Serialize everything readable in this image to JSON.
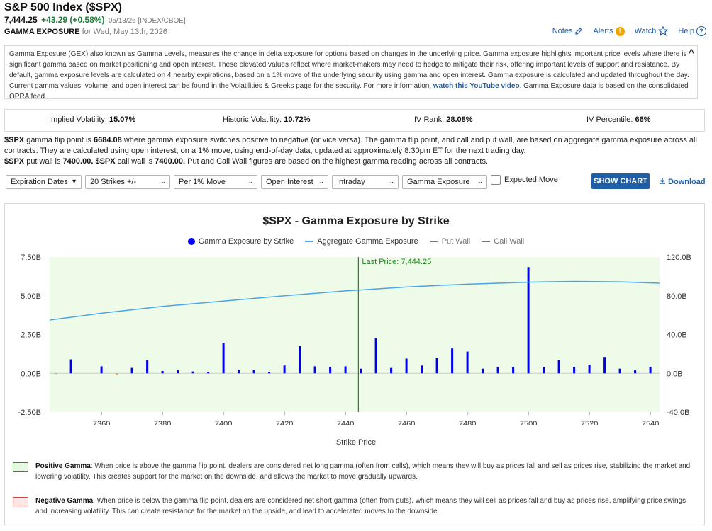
{
  "header": {
    "title": "S&P 500 Index ($SPX)",
    "price": "7,444.25",
    "change": "+43.29 (+0.58%)",
    "quote_meta": "05/13/26 [INDEX/CBOE]",
    "section_label": "GAMMA EXPOSURE",
    "section_date": "for Wed, May 13th, 2026"
  },
  "toplinks": {
    "notes": "Notes",
    "alerts": "Alerts",
    "alerts_badge": "!",
    "watch": "Watch",
    "help": "Help",
    "help_badge": "?"
  },
  "description": {
    "text_before_link": "Gamma Exposure (GEX) also known as Gamma Levels, measures the change in delta exposure for options based on changes in the underlying price. Gamma exposure highlights important price levels where there is significant gamma based on market positioning and open interest. These elevated values reflect where market-makers may need to hedge to mitigate their risk, offering important levels of support and resistance. By default, gamma exposure levels are calculated on 4 nearby expirations, based on a 1% move of the underlying security using gamma and open interest. Gamma exposure is calculated and updated throughout the day. Current gamma values, volume, and open interest can be found in the Volatilities & Greeks page for the security. For more information,",
    "link": "watch this YouTube video",
    "text_after_link": ". Gamma Exposure data is based on the consolidated OPRA feed.",
    "collapse_glyph": "^"
  },
  "stats": [
    {
      "label": "Implied Volatility:",
      "value": "15.07%"
    },
    {
      "label": "Historic Volatility:",
      "value": "10.72%"
    },
    {
      "label": "IV Rank:",
      "value": "28.08%"
    },
    {
      "label": "IV Percentile:",
      "value": "66%"
    }
  ],
  "flip": {
    "sym": "$SPX",
    "t1": " gamma flip point is ",
    "flip_value": "6684.08",
    "t2": " where gamma exposure switches positive to negative (or vice versa). The gamma flip point, and call and put wall, are based on aggregate gamma exposure across all contracts. They are calculated using open interest, on a 1% move, using end-of-day data, updated at approximately 8:30pm ET for the next trading day.",
    "t3": " put wall is ",
    "put_wall": "7400.00",
    "t4": " call wall is ",
    "call_wall": "7400.00",
    "t5": " Put and Call Wall figures are based on the highest gamma reading across all contracts."
  },
  "controls": {
    "expiration": "Expiration Dates",
    "strikes": "20 Strikes +/-",
    "move": "Per 1% Move",
    "interest": "Open Interest",
    "period": "Intraday",
    "metric": "Gamma Exposure",
    "expected_move": "Expected Move",
    "show_chart": "SHOW CHART",
    "download": "Download"
  },
  "chart_data": {
    "type": "bar",
    "title": "$SPX - Gamma Exposure by Strike",
    "xlabel": "Strike Price",
    "legend": [
      "Gamma Exposure by Strike",
      "Aggregate Gamma Exposure",
      "Put Wall",
      "Call Wall"
    ],
    "last_price_label": "Last Price: 7,444.25",
    "last_price": 7444.25,
    "xlim": [
      7343,
      7543
    ],
    "ylim": [
      -2.5,
      7.5
    ],
    "ylim_right": [
      -40,
      120
    ],
    "xticks": [
      7360,
      7380,
      7400,
      7420,
      7440,
      7460,
      7480,
      7500,
      7520,
      7540
    ],
    "yticks": [
      -2.5,
      0,
      2.5,
      5.0,
      7.5
    ],
    "ytick_labels": [
      "-2.50B",
      "0.00B",
      "2.50B",
      "5.00B",
      "7.50B"
    ],
    "yticks_right": [
      -40,
      0,
      40,
      80,
      120
    ],
    "ytick_right_labels": [
      "-40.0B",
      "0.0B",
      "40.0B",
      "80.0B",
      "120.0B"
    ],
    "strikes": [
      7345,
      7350,
      7360,
      7365,
      7370,
      7375,
      7380,
      7385,
      7390,
      7395,
      7400,
      7405,
      7410,
      7415,
      7420,
      7425,
      7430,
      7435,
      7440,
      7445,
      7450,
      7455,
      7460,
      7465,
      7470,
      7475,
      7480,
      7485,
      7490,
      7495,
      7500,
      7505,
      7510,
      7515,
      7520,
      7525,
      7530,
      7535,
      7540
    ],
    "values": [
      -0.05,
      0.9,
      0.45,
      -0.1,
      0.35,
      0.85,
      0.15,
      0.2,
      0.12,
      0.08,
      1.95,
      0.2,
      0.22,
      0.1,
      0.5,
      1.75,
      0.45,
      0.4,
      0.45,
      0.3,
      2.25,
      0.35,
      0.95,
      0.5,
      1.0,
      1.6,
      1.4,
      0.3,
      0.4,
      0.4,
      6.85,
      0.4,
      0.85,
      0.4,
      0.55,
      1.05,
      0.3,
      0.2,
      0.4
    ],
    "aggregate_strikes": [
      7343,
      7360,
      7380,
      7400,
      7420,
      7440,
      7460,
      7480,
      7500,
      7515,
      7530,
      7543
    ],
    "aggregate_values": [
      55,
      62,
      69,
      74.5,
      80,
      85,
      89,
      92,
      94,
      94.8,
      94.3,
      93
    ],
    "colors": {
      "positive": "#0000ee",
      "negative": "#f0a040",
      "aggregate": "#4aa3e8",
      "last_price": "#1a8a1a",
      "plot_bg": "#effbe9"
    }
  },
  "notes": {
    "positive_label": "Positive Gamma",
    "positive_text": ": When price is above the gamma flip point, dealers are considered net long gamma (often from calls), which means they will buy as prices fall and sell as prices rise, stabilizing the market and lowering volatility. This creates support for the market on the downside, and allows the market to move gradually upwards.",
    "negative_label": "Negative Gamma",
    "negative_text": ": When price is below the gamma flip point, dealers are considered net short gamma (often from puts), which means they will sell as prices fall and buy as prices rise, amplifying price swings and increasing volatility. This can create resistance for the market on the upside, and lead to accelerated moves to the downside."
  }
}
